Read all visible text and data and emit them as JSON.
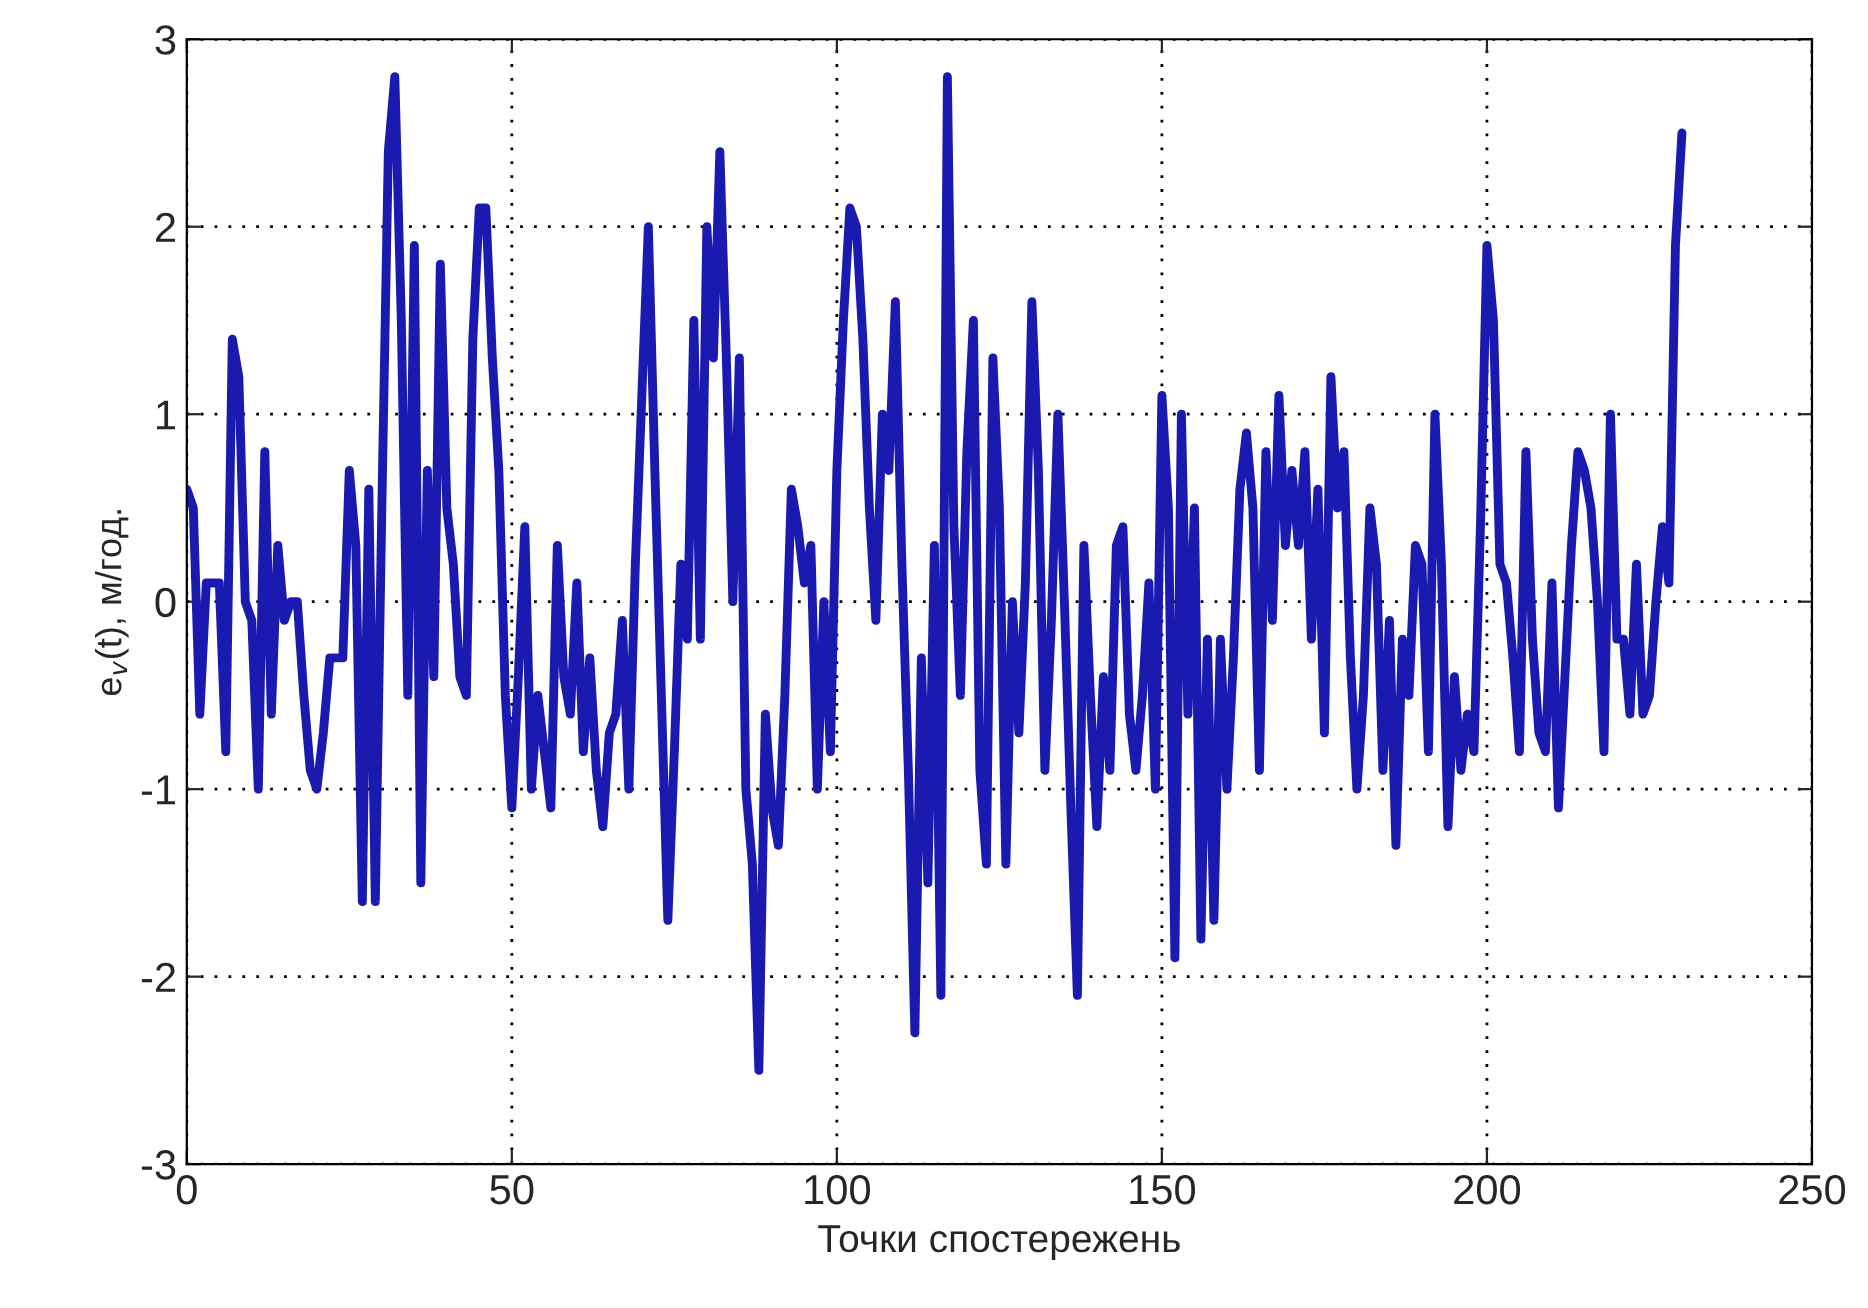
{
  "chart_data": {
    "type": "line",
    "xlabel": "Точки спостережень",
    "ylabel": "e$_{v}$(t), м/год.",
    "xlim": [
      0,
      250
    ],
    "ylim": [
      -3,
      3
    ],
    "xticks": [
      0,
      50,
      100,
      150,
      200,
      250
    ],
    "yticks": [
      -3,
      -2,
      -1,
      0,
      1,
      2,
      3
    ],
    "grid": true,
    "line_style": "solid",
    "series": [
      {
        "color": "#1a1ab0",
        "x": [
          0,
          1,
          2,
          3,
          4,
          5,
          6,
          7,
          8,
          9,
          10,
          11,
          12,
          13,
          14,
          15,
          16,
          17,
          18,
          19,
          20,
          21,
          22,
          23,
          24,
          25,
          26,
          27,
          28,
          29,
          30,
          31,
          32,
          33,
          34,
          35,
          36,
          37,
          38,
          39,
          40,
          41,
          42,
          43,
          44,
          45,
          46,
          47,
          48,
          49,
          50,
          51,
          52,
          53,
          54,
          55,
          56,
          57,
          58,
          59,
          60,
          61,
          62,
          63,
          64,
          65,
          66,
          67,
          68,
          69,
          70,
          71,
          72,
          73,
          74,
          75,
          76,
          77,
          78,
          79,
          80,
          81,
          82,
          83,
          84,
          85,
          86,
          87,
          88,
          89,
          90,
          91,
          92,
          93,
          94,
          95,
          96,
          97,
          98,
          99,
          100,
          101,
          102,
          103,
          104,
          105,
          106,
          107,
          108,
          109,
          110,
          111,
          112,
          113,
          114,
          115,
          116,
          117,
          118,
          119,
          120,
          121,
          122,
          123,
          124,
          125,
          126,
          127,
          128,
          129,
          130,
          131,
          132,
          133,
          134,
          135,
          136,
          137,
          138,
          139,
          140,
          141,
          142,
          143,
          144,
          145,
          146,
          147,
          148,
          149,
          150,
          151,
          152,
          153,
          154,
          155,
          156,
          157,
          158,
          159,
          160,
          161,
          162,
          163,
          164,
          165,
          166,
          167,
          168,
          169,
          170,
          171,
          172,
          173,
          174,
          175,
          176,
          177,
          178,
          179,
          180,
          181,
          182,
          183,
          184,
          185,
          186,
          187,
          188,
          189,
          190,
          191,
          192,
          193,
          194,
          195,
          196,
          197,
          198,
          199,
          200,
          201,
          202,
          203,
          204,
          205,
          206,
          207,
          208,
          209,
          210,
          211,
          212,
          213,
          214,
          215,
          216,
          217,
          218,
          219,
          220,
          221,
          222,
          223,
          224,
          225,
          226,
          227,
          228,
          229,
          230
        ],
        "values": [
          0.6,
          0.5,
          -0.6,
          0.1,
          0.1,
          0.1,
          -0.8,
          1.4,
          1.2,
          0,
          -0.1,
          -1.0,
          0.8,
          -0.6,
          0.3,
          -0.1,
          0,
          0,
          -0.5,
          -0.9,
          -1.0,
          -0.7,
          -0.3,
          -0.3,
          -0.3,
          0.7,
          0.3,
          -1.6,
          0.6,
          -1.6,
          0.5,
          2.4,
          2.8,
          1.5,
          -0.5,
          1.9,
          -1.5,
          0.7,
          -0.4,
          1.8,
          0.5,
          0.2,
          -0.4,
          -0.5,
          1.4,
          2.1,
          2.1,
          1.3,
          0.7,
          -0.5,
          -1.1,
          -0.4,
          0.4,
          -1.0,
          -0.5,
          -0.8,
          -1.1,
          0.3,
          -0.4,
          -0.6,
          0.1,
          -0.8,
          -0.3,
          -0.9,
          -1.2,
          -0.7,
          -0.6,
          -0.1,
          -1.0,
          0.2,
          1.1,
          2.0,
          0.7,
          -0.5,
          -1.7,
          -0.8,
          0.2,
          -0.2,
          1.5,
          -0.2,
          2.0,
          1.3,
          2.4,
          1.3,
          0.0,
          1.3,
          -1.0,
          -1.4,
          -2.5,
          -0.6,
          -1.1,
          -1.3,
          -0.5,
          0.6,
          0.4,
          0.1,
          0.3,
          -1.0,
          0,
          -0.8,
          0.7,
          1.5,
          2.1,
          2.0,
          1.4,
          0.5,
          -0.1,
          1.0,
          0.7,
          1.6,
          0.2,
          -0.9,
          -2.3,
          -0.3,
          -1.5,
          0.3,
          -2.1,
          2.8,
          0.4,
          -0.5,
          0.8,
          1.5,
          -0.9,
          -1.4,
          1.3,
          0.5,
          -1.4,
          0,
          -0.7,
          0.1,
          1.6,
          0.7,
          -0.9,
          -0.1,
          1.0,
          0.0,
          -1.1,
          -2.1,
          0.3,
          -0.5,
          -1.2,
          -0.4,
          -0.9,
          0.3,
          0.4,
          -0.6,
          -0.9,
          -0.5,
          0.1,
          -1.0,
          1.1,
          0.5,
          -1.9,
          1.0,
          -0.6,
          0.5,
          -1.8,
          -0.2,
          -1.7,
          -0.2,
          -1.0,
          -0.3,
          0.6,
          0.9,
          0.5,
          -0.9,
          0.8,
          -0.1,
          1.1,
          0.3,
          0.7,
          0.3,
          0.8,
          -0.2,
          0.6,
          -0.7,
          1.2,
          0.5,
          0.8,
          -0.3,
          -1.0,
          -0.5,
          0.5,
          0.2,
          -0.9,
          -0.1,
          -1.3,
          -0.2,
          -0.5,
          0.3,
          0.2,
          -0.8,
          1.0,
          0.2,
          -1.2,
          -0.4,
          -0.9,
          -0.6,
          -0.8,
          0.4,
          1.9,
          1.5,
          0.2,
          0.1,
          -0.3,
          -0.8,
          0.8,
          -0.2,
          -0.7,
          -0.8,
          0.1,
          -1.1,
          -0.4,
          0.3,
          0.8,
          0.7,
          0.5,
          0,
          -0.8,
          1.0,
          -0.2,
          -0.2,
          -0.6,
          0.2,
          -0.6,
          -0.5,
          0,
          0.4,
          0.1,
          1.9,
          2.5
        ]
      }
    ]
  }
}
